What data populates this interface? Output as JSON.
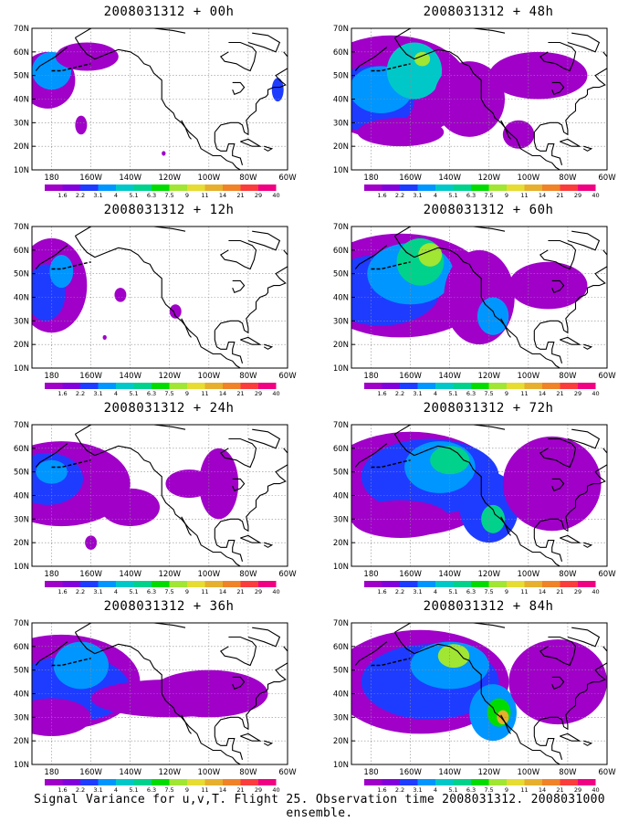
{
  "panels": [
    {
      "title": "2008031312 + 00h"
    },
    {
      "title": "2008031312 + 48h"
    },
    {
      "title": "2008031312 + 12h"
    },
    {
      "title": "2008031312 + 60h"
    },
    {
      "title": "2008031312 + 24h"
    },
    {
      "title": "2008031312 + 72h"
    },
    {
      "title": "2008031312 + 36h"
    },
    {
      "title": "2008031312 + 84h"
    }
  ],
  "axes": {
    "lat_labels": [
      "70N",
      "60N",
      "50N",
      "40N",
      "30N",
      "20N",
      "10N"
    ],
    "lon_labels": [
      "180",
      "160W",
      "140W",
      "120W",
      "100W",
      "80W",
      "60W"
    ]
  },
  "colorbar": {
    "labels": [
      "1.6",
      "2.2",
      "3.1",
      "4",
      "5.1",
      "6.3",
      "7.5",
      "9",
      "11",
      "14",
      "21",
      "29",
      "40"
    ],
    "colors": [
      "#a000c8",
      "#8200dc",
      "#1e3cff",
      "#0096ff",
      "#00c8c8",
      "#00d28c",
      "#00dc00",
      "#a0e632",
      "#e6dc32",
      "#e6af2d",
      "#f08228",
      "#fa3c3c",
      "#f00082"
    ]
  },
  "footer": "Signal Variance for u,v,T. Flight 25. Observation time 2008031312. 2008031000 ensemble."
}
